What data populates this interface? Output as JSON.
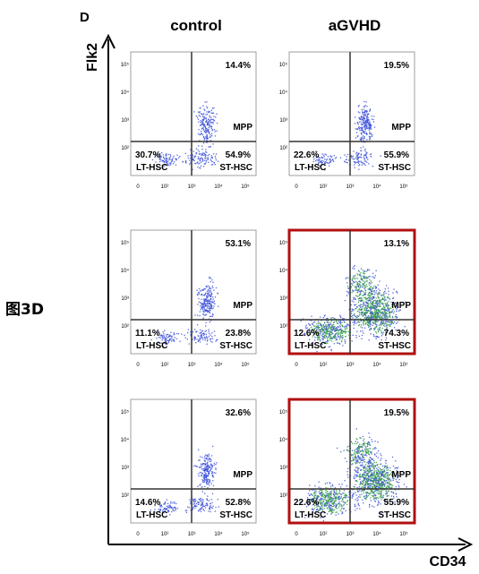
{
  "figure": {
    "panel_letter": "D",
    "side_label": "图3D",
    "column_titles": [
      "control",
      "aGVHD"
    ],
    "x_axis_label": "CD34",
    "y_axis_label": "Flk2",
    "highlight_color": "#b01010",
    "dot_color": "#3a4fd8",
    "dense_color": "#2fa040"
  },
  "chart_data": {
    "type": "scatter",
    "description_of_axes": "flow cytometry log-scale density plots",
    "x_ticks": [
      "0",
      "10²",
      "10³",
      "10⁴",
      "10⁵"
    ],
    "y_ticks": [
      "10²",
      "10³",
      "10⁴",
      "10⁵"
    ],
    "gate_labels": [
      "MPP",
      "LT-HSC",
      "ST-HSC"
    ],
    "panels": [
      {
        "row": 0,
        "column": "control",
        "highlighted": false,
        "dense": false,
        "top_right": "14.4%",
        "bottom_left": "30.7%",
        "bottom_right": "54.9%"
      },
      {
        "row": 0,
        "column": "aGVHD",
        "highlighted": false,
        "dense": false,
        "top_right": "19.5%",
        "bottom_left": "22.6%",
        "bottom_right": "55.9%"
      },
      {
        "row": 1,
        "column": "control",
        "highlighted": false,
        "dense": false,
        "top_right": "53.1%",
        "bottom_left": "11.1%",
        "bottom_right": "23.8%"
      },
      {
        "row": 1,
        "column": "aGVHD",
        "highlighted": true,
        "dense": true,
        "top_right": "13.1%",
        "bottom_left": "12.6%",
        "bottom_right": "74.3%"
      },
      {
        "row": 2,
        "column": "control",
        "highlighted": false,
        "dense": false,
        "top_right": "32.6%",
        "bottom_left": "14.6%",
        "bottom_right": "52.8%"
      },
      {
        "row": 2,
        "column": "aGVHD",
        "highlighted": true,
        "dense": true,
        "top_right": "19.5%",
        "bottom_left": "22.6%",
        "bottom_right": "55.9%"
      }
    ]
  }
}
